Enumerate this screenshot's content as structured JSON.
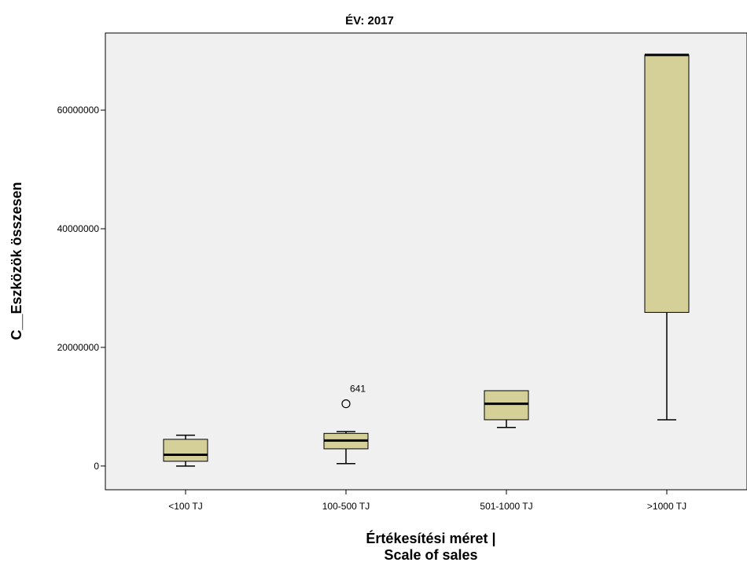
{
  "chart_data": {
    "type": "boxplot",
    "title": "ÉV: 2017",
    "xlabel_lines": [
      "Értékesítési méret |",
      "Scale of sales"
    ],
    "ylabel": "C__Eszközök összesen",
    "ylim": [
      -4000000,
      73000000
    ],
    "yticks": [
      0,
      20000000,
      40000000,
      60000000
    ],
    "ytick_labels": [
      "0",
      "20000000",
      "40000000",
      "60000000"
    ],
    "grid": false,
    "categories": [
      "<100 TJ",
      "100-500 TJ",
      "501-1000 TJ",
      ">1000 TJ"
    ],
    "boxes": [
      {
        "category": "<100 TJ",
        "whisker_low": 0,
        "q1": 800000,
        "median": 1900000,
        "q3": 4500000,
        "whisker_high": 5200000
      },
      {
        "category": "100-500 TJ",
        "whisker_low": 400000,
        "q1": 2900000,
        "median": 4300000,
        "q3": 5500000,
        "whisker_high": 5800000
      },
      {
        "category": "501-1000 TJ",
        "whisker_low": 6500000,
        "q1": 7800000,
        "median": 10500000,
        "q3": 12700000,
        "whisker_high": 12700000
      },
      {
        "category": ">1000 TJ",
        "whisker_low": 7800000,
        "q1": 25900000,
        "median": 69300000,
        "q3": 69300000,
        "whisker_high": 69300000
      }
    ],
    "outliers": [
      {
        "category": "100-500 TJ",
        "value": 10500000,
        "label": "641"
      }
    ],
    "colors": {
      "box_fill": "#d5cf98",
      "plot_background": "#f0f0f0",
      "line": "#000000"
    }
  }
}
